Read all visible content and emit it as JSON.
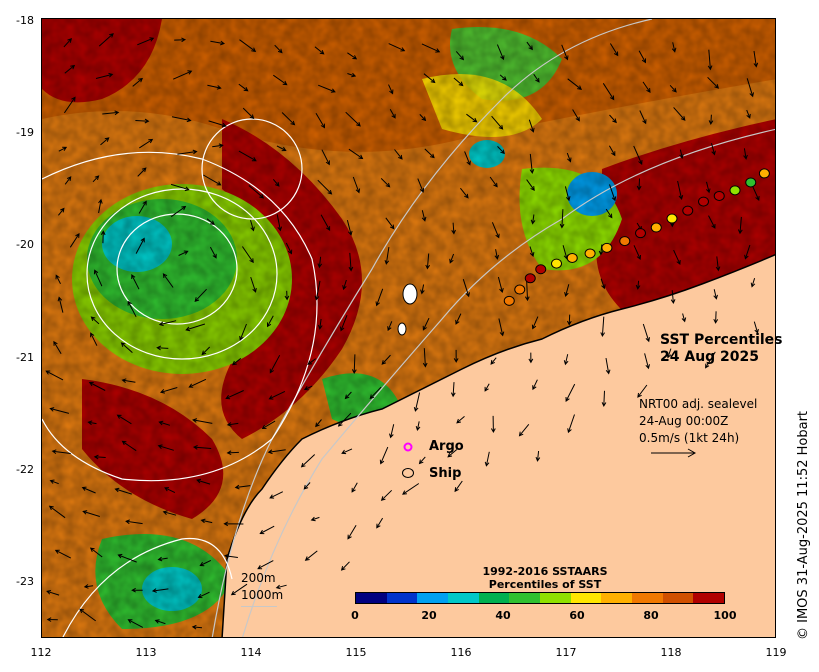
{
  "title": {
    "line1": "SST Percentiles",
    "line2": "24 Aug 2025"
  },
  "current_info": {
    "line1": "NRT00 adj. sealevel",
    "line2": "24-Aug 00:00Z",
    "line3": "0.5m/s (1kt 24h)"
  },
  "legend": {
    "argo_label": "Argo",
    "ship_label": "Ship",
    "argo_color": "#ff00ff",
    "ship_color": "#000000"
  },
  "bathymetry": {
    "label_200": "200m",
    "label_1000": "1000m"
  },
  "colorbar": {
    "title_line1": "1992-2016 SSTAARS",
    "title_line2": "Percentiles of SST",
    "tick_labels": [
      "0",
      "20",
      "40",
      "60",
      "80",
      "100"
    ],
    "colors": [
      "#000080",
      "#0033cc",
      "#00a0f0",
      "#00c8c8",
      "#00b050",
      "#30c030",
      "#90e000",
      "#ffe600",
      "#ffb000",
      "#f07800",
      "#d05000",
      "#b00000"
    ]
  },
  "axes": {
    "x_ticks": [
      "112",
      "113",
      "114",
      "115",
      "116",
      "117",
      "118",
      "119"
    ],
    "y_ticks": [
      "-18",
      "-19",
      "-20",
      "-21",
      "-22",
      "-23"
    ],
    "lon_range": [
      112,
      119
    ],
    "lat_range": [
      -23.5,
      -18
    ]
  },
  "ship_track": {
    "lon": [
      116.45,
      116.55,
      116.65,
      116.75,
      116.9,
      117.05,
      117.22,
      117.38,
      117.55,
      117.7,
      117.85,
      118.0,
      118.15,
      118.3,
      118.45,
      118.6,
      118.75,
      118.88
    ],
    "lat": [
      -20.5,
      -20.4,
      -20.3,
      -20.22,
      -20.17,
      -20.12,
      -20.08,
      -20.03,
      -19.97,
      -19.9,
      -19.85,
      -19.77,
      -19.7,
      -19.62,
      -19.57,
      -19.52,
      -19.45,
      -19.37
    ],
    "percentile": [
      78,
      80,
      95,
      100,
      65,
      70,
      72,
      74,
      78,
      100,
      70,
      65,
      95,
      100,
      92,
      55,
      45,
      70
    ]
  },
  "copyright": "© IMOS 31-Aug-2025 11:52 Hobart"
}
